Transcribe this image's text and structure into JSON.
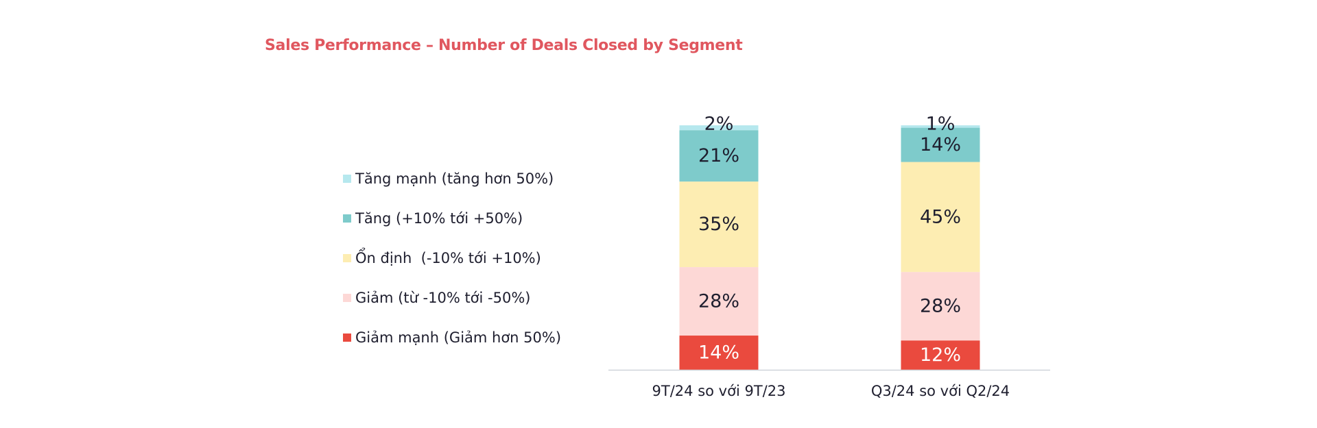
{
  "chart_data": {
    "type": "bar",
    "stacked": true,
    "percent": true,
    "title": "Sales Performance – Number of Deals Closed by Segment",
    "categories": [
      "9T/24 so với 9T/23",
      "Q3/24 so với Q2/24"
    ],
    "series": [
      {
        "name": "Giảm mạnh (Giảm hơn 50%)",
        "values": [
          14,
          12
        ],
        "labels": [
          "14%",
          "12%"
        ],
        "color": "#ea4a3e",
        "label_color": "#ffffff"
      },
      {
        "name": "Giảm (từ -10% tới -50%)",
        "values": [
          28,
          28
        ],
        "labels": [
          "28%",
          "28%"
        ],
        "color": "#fdd8d6",
        "label_color": "#1e1e2e"
      },
      {
        "name": "Ổn định  (-10% tới +10%)",
        "values": [
          35,
          45
        ],
        "labels": [
          "35%",
          "45%"
        ],
        "color": "#fdedb2",
        "label_color": "#1e1e2e"
      },
      {
        "name": "Tăng (+10% tới +50%)",
        "values": [
          21,
          14
        ],
        "labels": [
          "21%",
          "14%"
        ],
        "color": "#7ecbcb",
        "label_color": "#1e1e2e"
      },
      {
        "name": "Tăng mạnh (tăng hơn 50%)",
        "values": [
          2,
          1
        ],
        "labels": [
          "2%",
          "1%"
        ],
        "color": "#b6e8ee",
        "label_color": "#1e1e2e"
      }
    ],
    "legend_position": "left",
    "legend_order": [
      "Tăng mạnh (tăng hơn 50%)",
      "Tăng (+10% tới +50%)",
      "Ổn định  (-10% tới +10%)",
      "Giảm (từ -10% tới -50%)",
      "Giảm mạnh (Giảm hơn 50%)"
    ],
    "grid": false,
    "title_color": "#e0575f",
    "axis_color": "#cfd4da"
  }
}
